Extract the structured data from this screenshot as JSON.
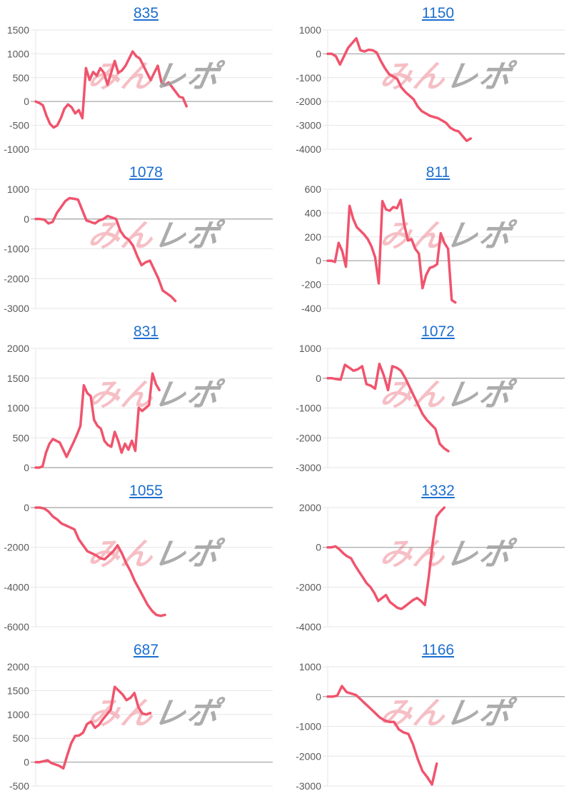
{
  "watermark": {
    "pink_text": "みん",
    "gray_text": "レポ"
  },
  "colors": {
    "title_link": "#1b6ed0",
    "line": "#f0546d",
    "grid": "#e6e6e6",
    "zero_line": "#b0b0b0",
    "axis_label": "#58595b",
    "watermark_pink": "#e96070",
    "watermark_gray": "#9e9e9e",
    "background": "#ffffff"
  },
  "chart_data": [
    {
      "type": "line",
      "title": "835",
      "ylim": [
        -1000,
        1500
      ],
      "yticks": [
        1500,
        1000,
        500,
        0,
        -500,
        -1000
      ],
      "x_slots": 67,
      "values": [
        0,
        -30,
        -80,
        -300,
        -470,
        -545,
        -500,
        -350,
        -150,
        -60,
        -120,
        -250,
        -180,
        -350,
        700,
        450,
        620,
        540,
        700,
        600,
        350,
        600,
        850,
        600,
        650,
        750,
        900,
        1050,
        950,
        900,
        750,
        600,
        450,
        600,
        750,
        400,
        350,
        400,
        300,
        200,
        100,
        80,
        -100
      ]
    },
    {
      "type": "line",
      "title": "1150",
      "ylim": [
        -4000,
        1000
      ],
      "yticks": [
        1000,
        0,
        -1000,
        -2000,
        -3000,
        -4000
      ],
      "x_slots": 59,
      "values": [
        0,
        0,
        -100,
        -450,
        -100,
        250,
        450,
        650,
        150,
        100,
        170,
        150,
        50,
        -300,
        -600,
        -850,
        -950,
        -1050,
        -1400,
        -1600,
        -1750,
        -1900,
        -2200,
        -2400,
        -2500,
        -2600,
        -2650,
        -2700,
        -2800,
        -2900,
        -3100,
        -3200,
        -3250,
        -3450,
        -3650,
        -3550
      ]
    },
    {
      "type": "line",
      "title": "1078",
      "ylim": [
        -3000,
        1000
      ],
      "yticks": [
        1000,
        0,
        -1000,
        -2000,
        -3000
      ],
      "x_slots": 57,
      "values": [
        0,
        0,
        -20,
        -150,
        -100,
        200,
        400,
        600,
        700,
        680,
        650,
        300,
        -50,
        -100,
        -150,
        -50,
        0,
        100,
        50,
        0,
        -400,
        -600,
        -700,
        -900,
        -1250,
        -1550,
        -1450,
        -1400,
        -1700,
        -2000,
        -2400,
        -2500,
        -2600,
        -2750
      ]
    },
    {
      "type": "line",
      "title": "811",
      "ylim": [
        -400,
        600
      ],
      "yticks": [
        600,
        400,
        200,
        0,
        -200,
        -400
      ],
      "x_slots": 66,
      "values": [
        0,
        0,
        -10,
        150,
        80,
        -50,
        460,
        350,
        280,
        250,
        220,
        180,
        120,
        30,
        -190,
        500,
        430,
        420,
        450,
        440,
        510,
        300,
        170,
        180,
        100,
        60,
        -230,
        -120,
        -60,
        -50,
        -30,
        230,
        150,
        100,
        -330,
        -350
      ]
    },
    {
      "type": "line",
      "title": "831",
      "ylim": [
        0,
        2000
      ],
      "yticks": [
        2000,
        1500,
        1000,
        500,
        0
      ],
      "x_slots": 70,
      "values": [
        0,
        0,
        20,
        250,
        400,
        480,
        450,
        420,
        300,
        180,
        300,
        420,
        550,
        700,
        1380,
        1250,
        1200,
        800,
        700,
        650,
        450,
        380,
        350,
        600,
        450,
        250,
        400,
        300,
        450,
        280,
        1000,
        950,
        1000,
        1050,
        1580,
        1400,
        1300
      ]
    },
    {
      "type": "line",
      "title": "1072",
      "ylim": [
        -3000,
        1000
      ],
      "yticks": [
        1000,
        0,
        -1000,
        -2000,
        -3000
      ],
      "x_slots": 56,
      "values": [
        0,
        0,
        -30,
        -50,
        450,
        350,
        250,
        300,
        400,
        -200,
        -250,
        -350,
        480,
        100,
        -400,
        400,
        350,
        250,
        0,
        -300,
        -600,
        -900,
        -1200,
        -1400,
        -1550,
        -1700,
        -2200,
        -2350,
        -2450
      ]
    },
    {
      "type": "line",
      "title": "1055",
      "ylim": [
        -6000,
        0
      ],
      "yticks": [
        0,
        -2000,
        -4000,
        -6000
      ],
      "x_slots": 56,
      "values": [
        0,
        0,
        -50,
        -200,
        -450,
        -600,
        -800,
        -900,
        -1000,
        -1100,
        -1600,
        -1900,
        -2200,
        -2300,
        -2400,
        -2550,
        -2600,
        -2400,
        -2200,
        -1900,
        -2300,
        -2800,
        -3200,
        -3700,
        -4100,
        -4500,
        -4900,
        -5200,
        -5400,
        -5450,
        -5400
      ]
    },
    {
      "type": "line",
      "title": "1332",
      "ylim": [
        -4000,
        2000
      ],
      "yticks": [
        2000,
        0,
        -2000,
        -4000
      ],
      "x_slots": 62,
      "values": [
        0,
        0,
        50,
        -100,
        -300,
        -450,
        -550,
        -900,
        -1200,
        -1500,
        -1800,
        -2000,
        -2300,
        -2700,
        -2550,
        -2400,
        -2750,
        -2900,
        -3050,
        -3100,
        -2950,
        -2800,
        -2650,
        -2550,
        -2700,
        -2900,
        -1500,
        200,
        1550,
        1800,
        2000
      ]
    },
    {
      "type": "line",
      "title": "687",
      "ylim": [
        -500,
        2000
      ],
      "yticks": [
        2000,
        1500,
        1000,
        500,
        0,
        -500
      ],
      "x_slots": 61,
      "values": [
        0,
        0,
        20,
        40,
        -20,
        -50,
        -80,
        -130,
        150,
        400,
        550,
        560,
        620,
        800,
        850,
        720,
        780,
        900,
        1000,
        1100,
        1580,
        1500,
        1420,
        1300,
        1350,
        1450,
        1150,
        1020,
        1000,
        1030
      ]
    },
    {
      "type": "line",
      "title": "1166",
      "ylim": [
        -3000,
        1000
      ],
      "yticks": [
        1000,
        0,
        -1000,
        -2000,
        -3000
      ],
      "x_slots": 51,
      "values": [
        0,
        0,
        30,
        350,
        150,
        100,
        50,
        -100,
        -250,
        -400,
        -550,
        -700,
        -800,
        -850,
        -850,
        -1100,
        -1200,
        -1250,
        -1600,
        -2100,
        -2500,
        -2700,
        -2950,
        -2250
      ]
    }
  ]
}
